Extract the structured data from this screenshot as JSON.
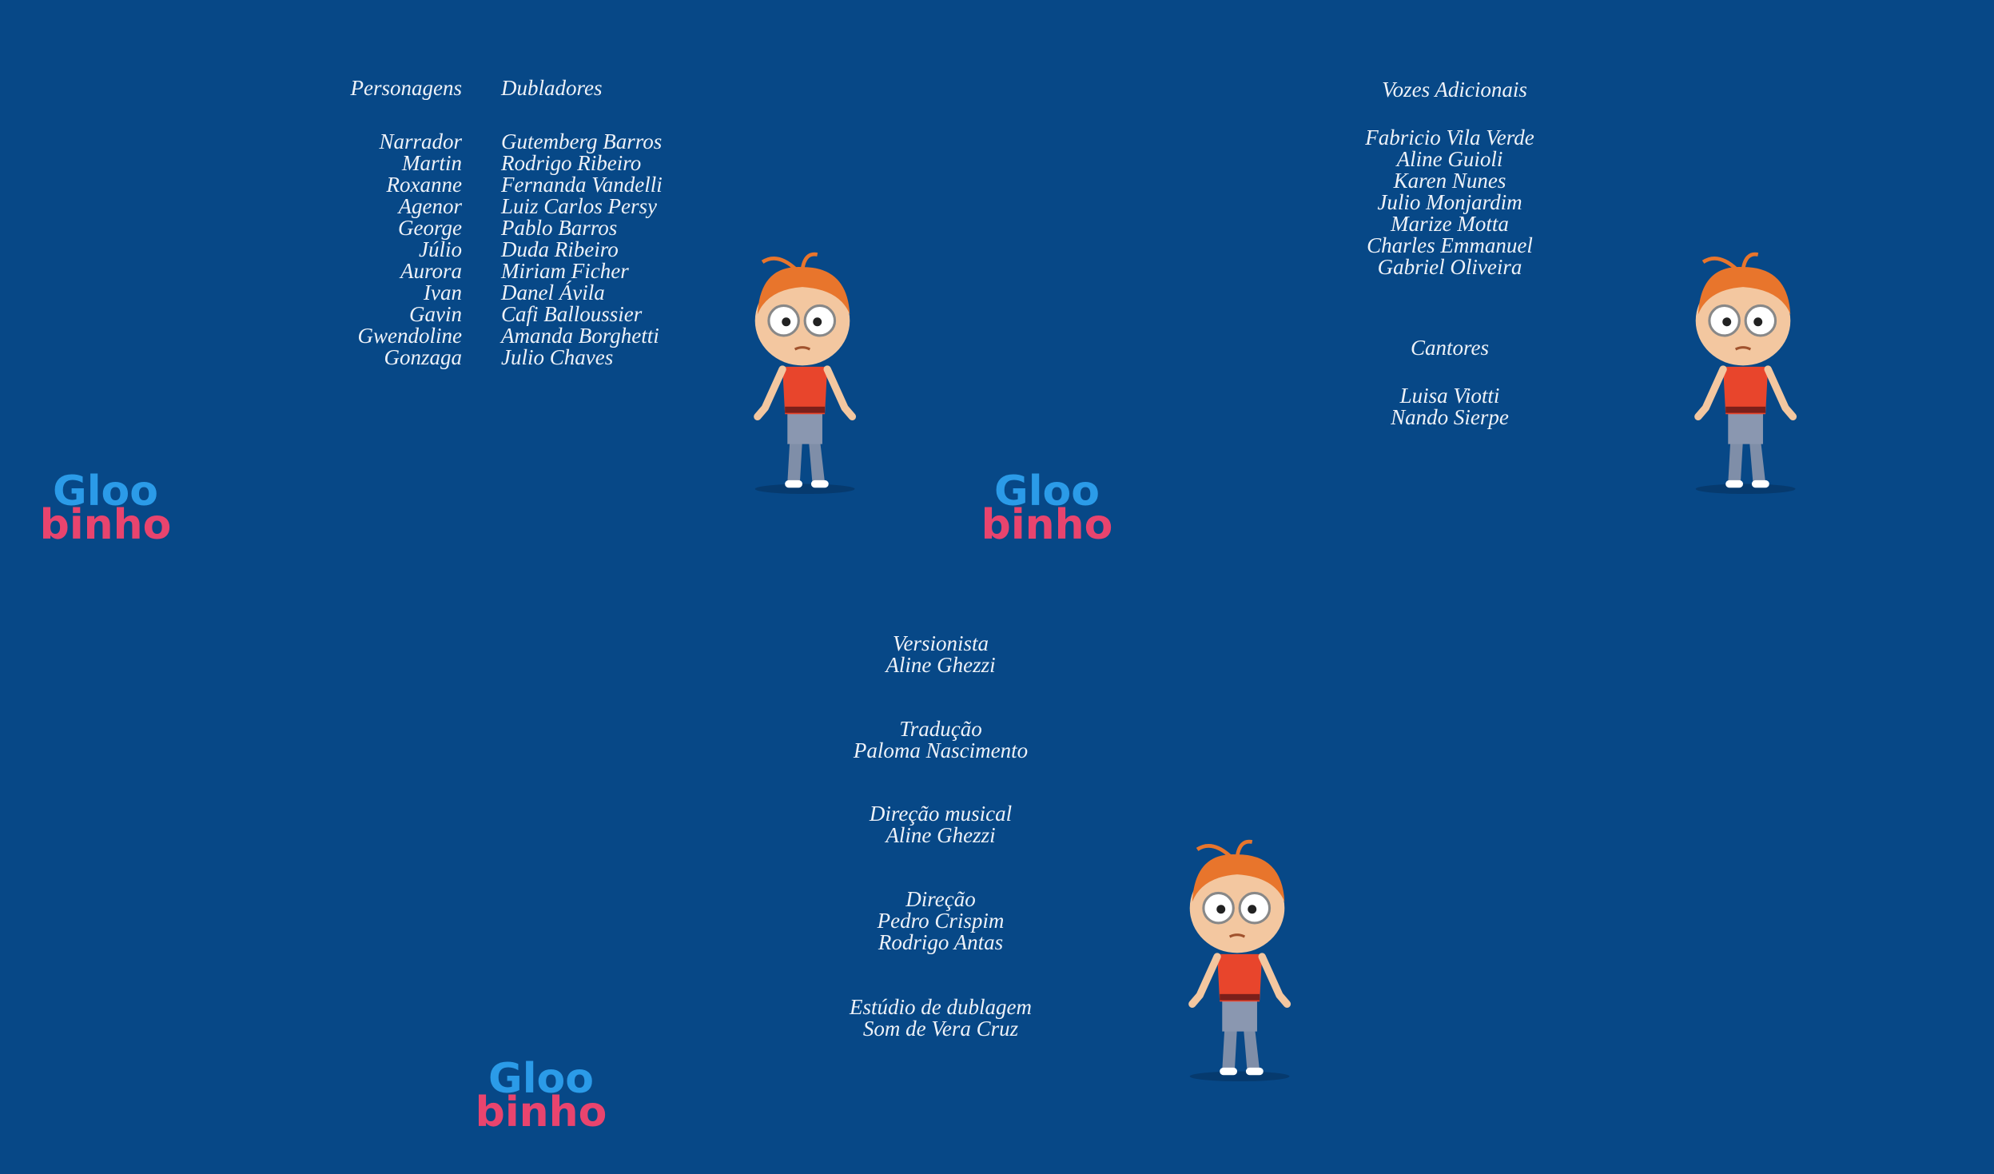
{
  "cast": {
    "headers": [
      "Personagens",
      "Dubladores"
    ],
    "characters": [
      "Narrador",
      "Martin",
      "Roxanne",
      "Agenor",
      "George",
      "Júlio",
      "Aurora",
      "Ivan",
      "Gavin",
      "Gwendoline",
      "Gonzaga"
    ],
    "actors": [
      "Gutemberg Barros",
      "Rodrigo Ribeiro",
      "Fernanda Vandelli",
      "Luiz Carlos Persy",
      "Pablo Barros",
      "Duda Ribeiro",
      "Miriam Ficher",
      "Danel Ávila",
      "Cafi Balloussier",
      "Amanda Borghetti",
      "Julio Chaves"
    ]
  },
  "additional_voices": {
    "title": "Vozes Adicionais",
    "names": [
      "Fabricio Vila Verde",
      "Aline Guioli",
      "Karen Nunes",
      "Julio Monjardim",
      "Marize Motta",
      "Charles Emmanuel",
      "Gabriel Oliveira"
    ]
  },
  "singers": {
    "title": "Cantores",
    "names": [
      "Luisa Viotti",
      "Nando Sierpe"
    ]
  },
  "credits": [
    {
      "role": "Versionista",
      "names": [
        "Aline Ghezzi"
      ]
    },
    {
      "role": "Tradução",
      "names": [
        "Paloma Nascimento"
      ]
    },
    {
      "role": "Direção musical",
      "names": [
        "Aline Ghezzi"
      ]
    },
    {
      "role": "Direção",
      "names": [
        "Pedro Crispim",
        "Rodrigo Antas"
      ]
    },
    {
      "role": "Estúdio de dublagem",
      "names": [
        "Som de Vera Cruz"
      ]
    }
  ],
  "logo": {
    "line1": "Gloo",
    "line2": "binho"
  }
}
